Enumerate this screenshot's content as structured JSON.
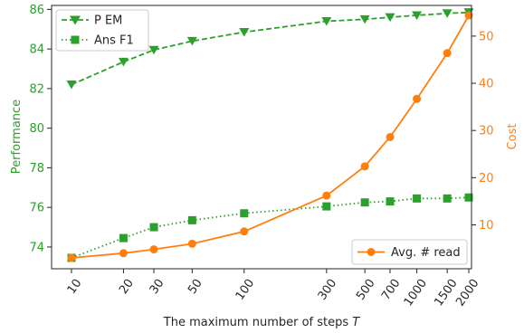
{
  "chart_data": {
    "type": "line",
    "x": [
      10,
      20,
      30,
      50,
      100,
      300,
      500,
      700,
      1000,
      1500,
      2000
    ],
    "x_tick_labels": [
      "10",
      "20",
      "30",
      "50",
      "100",
      "300",
      "500",
      "700",
      "1000",
      "1500",
      "2000"
    ],
    "x_scale": "log",
    "xlabel_text": "The maximum number of steps ",
    "xlabel_var": "T",
    "ylabel_left": "Performance",
    "ylabel_right": "Cost",
    "ylim_left": [
      72.9,
      86.2
    ],
    "ylim_right": [
      0.7,
      56.5
    ],
    "yticks_left": [
      74,
      76,
      78,
      80,
      82,
      84,
      86
    ],
    "yticks_right": [
      10,
      20,
      30,
      40,
      50
    ],
    "grid": false,
    "left_series": [
      {
        "name": "P EM",
        "values": [
          82.2,
          83.35,
          83.95,
          84.4,
          84.85,
          85.4,
          85.5,
          85.6,
          85.7,
          85.8,
          85.85
        ],
        "color": "#2ca02c",
        "marker": "triangle-down",
        "line_style": "dashed"
      },
      {
        "name": "Ans F1",
        "values": [
          73.45,
          74.45,
          75.0,
          75.35,
          75.7,
          76.05,
          76.25,
          76.3,
          76.45,
          76.45,
          76.5
        ],
        "color": "#2ca02c",
        "marker": "square",
        "line_style": "dotted"
      }
    ],
    "right_series": [
      {
        "name": "Avg. # read",
        "values": [
          3.0,
          4.0,
          4.8,
          6.0,
          8.6,
          16.2,
          22.4,
          28.6,
          36.7,
          46.4,
          54.4
        ],
        "color": "#ff7f0e",
        "marker": "circle",
        "line_style": "solid"
      }
    ],
    "legend_left_position": "top-left",
    "legend_right_position": "bottom-right"
  }
}
